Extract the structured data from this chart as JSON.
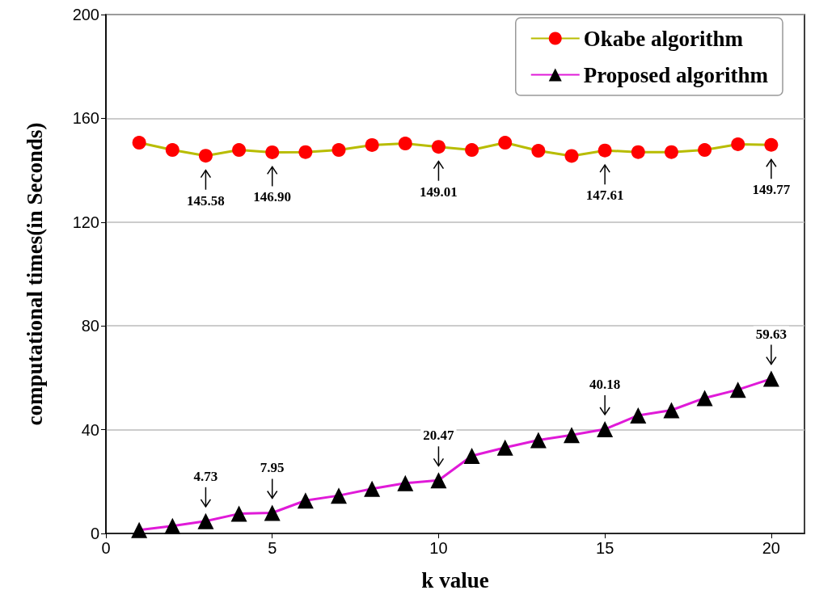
{
  "chart_data": {
    "type": "line",
    "xlabel": "k value",
    "ylabel": "computational times(in Seconds)",
    "x": [
      1,
      2,
      3,
      4,
      5,
      6,
      7,
      8,
      9,
      10,
      11,
      12,
      13,
      14,
      15,
      16,
      17,
      18,
      19,
      20
    ],
    "series": [
      {
        "name": "Okabe algorithm",
        "color": "#b8bc00",
        "marker": "circle",
        "colors": [
          "#ff0000",
          "#ff0000",
          "#ff0000",
          "#ff0000",
          "#ff0000",
          "#ff0000",
          "#ff0000",
          "#ff0000",
          "#ff0000",
          "#ff0000",
          "#ff0000",
          "#ff0000",
          "#ff0000",
          "#ff0000",
          "#ff0000",
          "#ff0000",
          "#ff0000",
          "#ff0000",
          "#ff0000",
          "#ff0000"
        ],
        "values": [
          150.6,
          147.8,
          145.58,
          147.8,
          146.9,
          147,
          147.8,
          149.7,
          150.3,
          149.01,
          147.8,
          150.6,
          147.5,
          145.5,
          147.61,
          147,
          147,
          147.8,
          150,
          149.77
        ]
      },
      {
        "name": "Proposed algorithm",
        "color": "#e01ad8",
        "marker": "triangle",
        "colors": [
          "#000000",
          "#000000",
          "#000000",
          "#000000",
          "#000000",
          "#000000",
          "#000000",
          "#000000",
          "#000000",
          "#000000",
          "#000000",
          "#000000",
          "#000000",
          "#000000",
          "#000000",
          "#000000",
          "#000000",
          "#000000",
          "#000000",
          "#000000"
        ],
        "values": [
          1.3,
          2.9,
          4.73,
          7.6,
          7.95,
          12.7,
          14.6,
          17.2,
          19.4,
          20.47,
          29.9,
          33.1,
          36,
          37.9,
          40.18,
          45.5,
          47.5,
          52.2,
          55.4,
          59.63
        ]
      }
    ],
    "annotations": [
      {
        "text": "145.58",
        "x": 3,
        "y": 145.58
      },
      {
        "text": "146.90",
        "x": 5,
        "y": 146.9
      },
      {
        "text": "149.01",
        "x": 10,
        "y": 149.01
      },
      {
        "text": "147.61",
        "x": 15,
        "y": 147.61
      },
      {
        "text": "149.77",
        "x": 20,
        "y": 149.77
      },
      {
        "text": "4.73",
        "x": 3,
        "y": 4.73
      },
      {
        "text": "7.95",
        "x": 5,
        "y": 7.95
      },
      {
        "text": "20.47",
        "x": 10,
        "y": 20.47
      },
      {
        "text": "40.18",
        "x": 15,
        "y": 40.18
      },
      {
        "text": "59.63",
        "x": 20,
        "y": 59.63
      }
    ],
    "xlim": [
      0,
      21
    ],
    "xticks": [
      0,
      5,
      10,
      15,
      20
    ],
    "ylim": [
      0,
      200
    ],
    "yticks": [
      0,
      40,
      80,
      120,
      160,
      200
    ],
    "grid": "y",
    "legend": "top right",
    "line_style": "solid"
  }
}
